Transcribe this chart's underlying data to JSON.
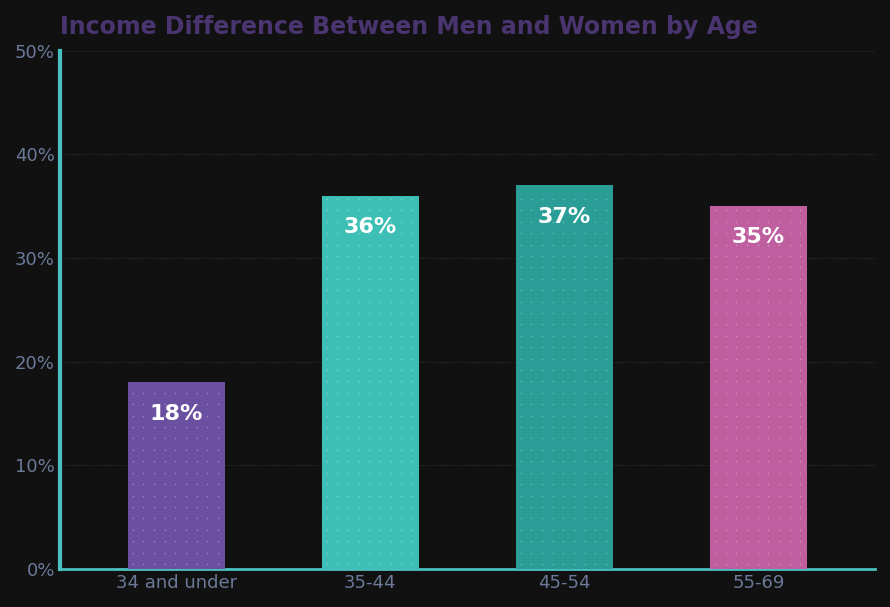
{
  "title": "Income Difference Between Men and Women by Age",
  "categories": [
    "34 and under",
    "35-44",
    "45-54",
    "55-69"
  ],
  "values": [
    18,
    36,
    37,
    35
  ],
  "labels": [
    "18%",
    "36%",
    "37%",
    "35%"
  ],
  "bar_colors": [
    "#6B4FA0",
    "#3DBFB5",
    "#2A9E96",
    "#BF5FA0"
  ],
  "background_color": "#111111",
  "title_color": "#4A3570",
  "label_color": "#ffffff",
  "left_spine_color": "#4ABFBF",
  "bottom_spine_color": "#4ABFBF",
  "grid_color": "#333333",
  "tick_color": "#6B7A99",
  "ylim": [
    0,
    50
  ],
  "yticks": [
    0,
    10,
    20,
    30,
    40,
    50
  ],
  "ytick_labels": [
    "0%",
    "10%",
    "20%",
    "30%",
    "40%",
    "50%"
  ],
  "title_fontsize": 17,
  "label_fontsize": 16,
  "tick_fontsize": 13
}
